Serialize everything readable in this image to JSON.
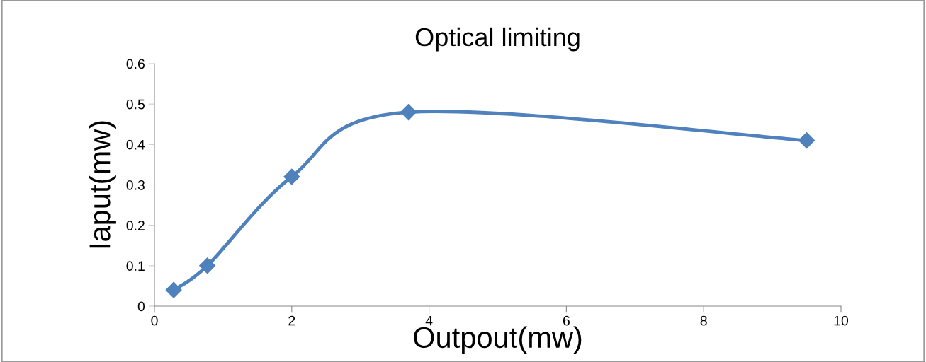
{
  "chart_data": {
    "type": "line",
    "title": "Optical limiting",
    "xlabel": "Outpout(mw)",
    "ylabel": "Iaput(mw)",
    "x": [
      0.28,
      0.77,
      2.0,
      3.7,
      9.5
    ],
    "series": [
      {
        "color": "#4f81bd",
        "values": [
          0.04,
          0.1,
          0.32,
          0.48,
          0.41
        ]
      }
    ],
    "xlim": [
      0,
      10
    ],
    "xticks": [
      0,
      2,
      4,
      6,
      8,
      10
    ],
    "ylim": [
      0,
      0.6
    ],
    "yticks": [
      0,
      0.1,
      0.2,
      0.3,
      0.4,
      0.5,
      0.6
    ],
    "marker": "diamond",
    "line_style": "solid",
    "grid": false,
    "legend": false
  }
}
